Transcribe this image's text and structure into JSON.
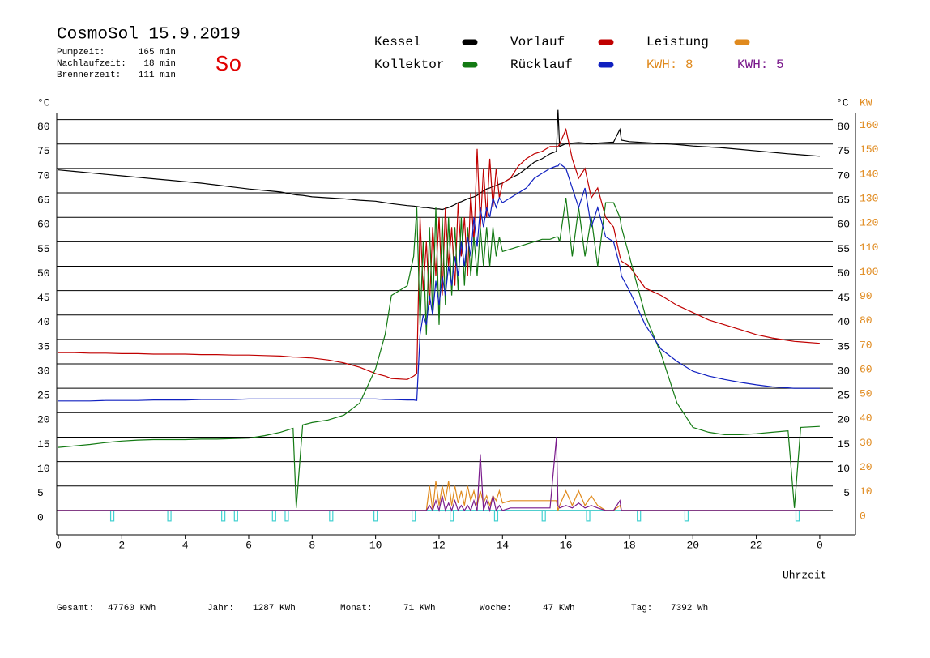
{
  "chart_data": {
    "type": "line",
    "title": "CosmoSol 15.9.2019",
    "info": [
      [
        "Pumpzeit:",
        "165 min"
      ],
      [
        "Nachlaufzeit:",
        "18 min"
      ],
      [
        "Brennerzeit:",
        "111 min"
      ]
    ],
    "weekday": "So",
    "kwh_labels": [
      {
        "text": "KWH: 8",
        "color": "#e08a1e"
      },
      {
        "text": "KWH: 5",
        "color": "#7a1a8c"
      }
    ],
    "y_label": "°C",
    "y2_unit_labels": [
      "°C",
      "KW"
    ],
    "x_label": "Uhrzeit",
    "footer": [
      [
        "Gesamt:",
        "47760 KWh"
      ],
      [
        "Jahr:",
        "1287 KWh"
      ],
      [
        "Monat:",
        "71 KWh"
      ],
      [
        "Woche:",
        "47 KWh"
      ],
      [
        "Tag:",
        "7392 Wh"
      ]
    ],
    "xlim": [
      0,
      25.1
    ],
    "xticks": [
      0,
      2,
      4,
      6,
      8,
      10,
      12,
      14,
      16,
      18,
      20,
      22,
      {
        "value": 24,
        "label": "0"
      }
    ],
    "ylim": [
      -5,
      81.5
    ],
    "yticks": [
      0,
      5,
      10,
      15,
      20,
      25,
      30,
      35,
      40,
      45,
      50,
      55,
      60,
      65,
      70,
      75,
      80
    ],
    "y_right_ticks": [
      5,
      10,
      15,
      20,
      25,
      30,
      35,
      40,
      45,
      50,
      55,
      60,
      65,
      70,
      75,
      80
    ],
    "y2lim": [
      -10,
      163
    ],
    "y2ticks": [
      0,
      10,
      20,
      30,
      40,
      50,
      60,
      70,
      80,
      90,
      100,
      110,
      120,
      130,
      140,
      150,
      160
    ],
    "grid": true,
    "x": [
      0,
      0.5,
      1,
      1.5,
      2,
      2.5,
      3,
      3.5,
      4,
      4.5,
      5,
      5.5,
      6,
      6.5,
      7,
      7.4,
      7.5,
      7.7,
      8,
      8.5,
      9,
      9.5,
      10,
      10.3,
      10.5,
      11,
      11.2,
      11.3,
      11.4,
      11.5,
      11.6,
      11.7,
      11.8,
      11.9,
      12,
      12.1,
      12.2,
      12.3,
      12.4,
      12.5,
      12.6,
      12.7,
      12.8,
      12.9,
      13,
      13.1,
      13.2,
      13.3,
      13.4,
      13.5,
      13.6,
      13.7,
      13.8,
      13.9,
      14,
      14.25,
      14.5,
      14.75,
      15,
      15.25,
      15.5,
      15.7,
      15.75,
      15.8,
      16,
      16.2,
      16.4,
      16.6,
      16.8,
      17,
      17.25,
      17.5,
      17.7,
      17.75,
      18,
      18.5,
      19,
      19.5,
      20,
      20.5,
      21,
      21.5,
      22,
      22.5,
      23,
      23.2,
      23.4,
      24
    ],
    "series": [
      {
        "name": "Kessel",
        "color": "#000000",
        "values": [
          69.7,
          69.4,
          69.1,
          68.8,
          68.5,
          68.2,
          67.9,
          67.6,
          67.3,
          67,
          66.6,
          66.2,
          65.8,
          65.5,
          65.2,
          64.7,
          64.6,
          64.5,
          64.2,
          64,
          63.8,
          63.5,
          63.3,
          63,
          62.8,
          62.4,
          62.3,
          62.2,
          62.1,
          62,
          62,
          61.9,
          61.8,
          61.7,
          61.7,
          61.6,
          61.8,
          62,
          62.3,
          62.6,
          63,
          63.2,
          63.5,
          63.8,
          64,
          64.2,
          64.5,
          65,
          65.4,
          65.8,
          66,
          66.3,
          66.5,
          66.8,
          67,
          68,
          68.8,
          70,
          71.3,
          72,
          73,
          73.5,
          82,
          74.5,
          75.1,
          75.2,
          75.3,
          75.2,
          75,
          75.2,
          75.3,
          75.4,
          78,
          75.8,
          75.5,
          75.3,
          75.1,
          74.9,
          74.6,
          74.4,
          74.2,
          73.9,
          73.6,
          73.3,
          73,
          72.9,
          72.8,
          72.5
        ]
      },
      {
        "name": "Vorlauf",
        "color": "#c00000",
        "values": [
          32.3,
          32.3,
          32.2,
          32.2,
          32.1,
          32.1,
          32,
          32,
          32,
          31.9,
          31.9,
          31.8,
          31.8,
          31.7,
          31.6,
          31.4,
          31.4,
          31.3,
          31.2,
          30.8,
          30.2,
          29.3,
          28,
          27.5,
          27,
          26.8,
          27.5,
          28,
          60,
          45,
          55,
          42,
          58,
          48,
          60,
          44,
          62,
          50,
          58,
          46,
          63,
          52,
          60,
          48,
          65,
          55,
          74,
          58,
          70,
          60,
          72,
          62,
          70,
          64,
          67,
          68,
          70.5,
          72,
          73,
          73.5,
          74.5,
          74.5,
          74.5,
          75,
          78,
          72,
          68,
          70,
          64,
          66,
          60,
          58,
          52,
          51,
          50,
          45.5,
          44,
          42,
          40.5,
          39,
          38,
          37,
          36,
          35.3,
          34.8,
          34.6,
          34.5,
          34.2
        ]
      },
      {
        "name": "Leistung",
        "color": "#e08a1e",
        "axis": "y2",
        "values": [
          0,
          0,
          0,
          0,
          0,
          0,
          0,
          0,
          0,
          0,
          0,
          0,
          0,
          0,
          0,
          0,
          0,
          0,
          0,
          0,
          0,
          0,
          0,
          0,
          0,
          0,
          0,
          0,
          0,
          0,
          0,
          10,
          0,
          12,
          2,
          10,
          4,
          12,
          2,
          10,
          3,
          8,
          2,
          10,
          4,
          8,
          2,
          8,
          3,
          6,
          2,
          6,
          4,
          8,
          3,
          4,
          4,
          4,
          4,
          4,
          4,
          4,
          0,
          2,
          8,
          2,
          8,
          2,
          6,
          2,
          0,
          0,
          2,
          0,
          0,
          0,
          0,
          0,
          0,
          0,
          0,
          0,
          0,
          0,
          0,
          0,
          0,
          0
        ]
      },
      {
        "name": "Kollektor",
        "color": "#137a13",
        "values": [
          12.9,
          13.2,
          13.5,
          13.9,
          14.2,
          14.4,
          14.5,
          14.5,
          14.5,
          14.6,
          14.6,
          14.7,
          14.8,
          15.3,
          16,
          16.8,
          0.5,
          17.5,
          18,
          18.5,
          19.5,
          22,
          29,
          36,
          44,
          46,
          52,
          62,
          38,
          55,
          36,
          58,
          40,
          62,
          38,
          60,
          42,
          60,
          44,
          58,
          45,
          60,
          46,
          58,
          48,
          56,
          48,
          58,
          50,
          58,
          50,
          58,
          52,
          56,
          53,
          53.5,
          54,
          54.5,
          55,
          55.5,
          55.5,
          56,
          56,
          55,
          64,
          52,
          62,
          52,
          60,
          50,
          63,
          63,
          60,
          58,
          52,
          40,
          32,
          22,
          17,
          16,
          15.5,
          15.5,
          15.7,
          16,
          16.3,
          0.5,
          17,
          17.2
        ]
      },
      {
        "name": "Rücklauf",
        "color": "#1020c0",
        "values": [
          22.4,
          22.4,
          22.4,
          22.5,
          22.5,
          22.5,
          22.6,
          22.6,
          22.6,
          22.7,
          22.7,
          22.7,
          22.8,
          22.8,
          22.8,
          22.8,
          22.8,
          22.8,
          22.8,
          22.8,
          22.8,
          22.8,
          22.8,
          22.7,
          22.7,
          22.6,
          22.6,
          22.5,
          36,
          40,
          38,
          44,
          40,
          47,
          42,
          48,
          44,
          50,
          46,
          52,
          48,
          55,
          50,
          56,
          52,
          60,
          54,
          62,
          58,
          62,
          60,
          64,
          62,
          64,
          63,
          64,
          65,
          66,
          68,
          69,
          70,
          70.5,
          70.5,
          71,
          70,
          66,
          62,
          66,
          58,
          62,
          56,
          55,
          50,
          48,
          45,
          38,
          33,
          30.5,
          28.5,
          27.5,
          26.8,
          26.2,
          25.7,
          25.3,
          25.1,
          25,
          25,
          25
        ]
      },
      {
        "color": "#7a1a8c",
        "axis": "y2",
        "values": [
          0,
          0,
          0,
          0,
          0,
          0,
          0,
          0,
          0,
          0,
          0,
          0,
          0,
          0,
          0,
          0,
          0,
          0,
          0,
          0,
          0,
          0,
          0,
          0,
          0,
          0,
          0,
          0,
          0,
          0,
          0,
          2,
          0,
          4,
          0,
          6,
          0,
          3,
          0,
          4,
          0,
          2,
          0,
          2,
          0,
          4,
          0,
          23,
          0,
          4,
          0,
          6,
          0,
          2,
          0,
          1,
          1,
          1,
          1,
          1,
          1,
          30,
          2,
          1,
          2,
          1,
          3,
          1,
          2,
          1,
          0,
          0,
          4,
          0,
          0,
          0,
          0,
          0,
          0,
          0,
          0,
          0,
          0,
          0,
          0,
          0,
          0,
          0
        ]
      }
    ],
    "pump_line": {
      "color": "#40d0d0",
      "value": 0,
      "pulses": [
        1.7,
        3.5,
        5.2,
        5.6,
        6.8,
        7.2,
        8.6,
        10,
        11.2,
        12.4,
        13.8,
        15.3,
        16.7,
        18.3,
        19.8,
        23.3
      ]
    }
  }
}
